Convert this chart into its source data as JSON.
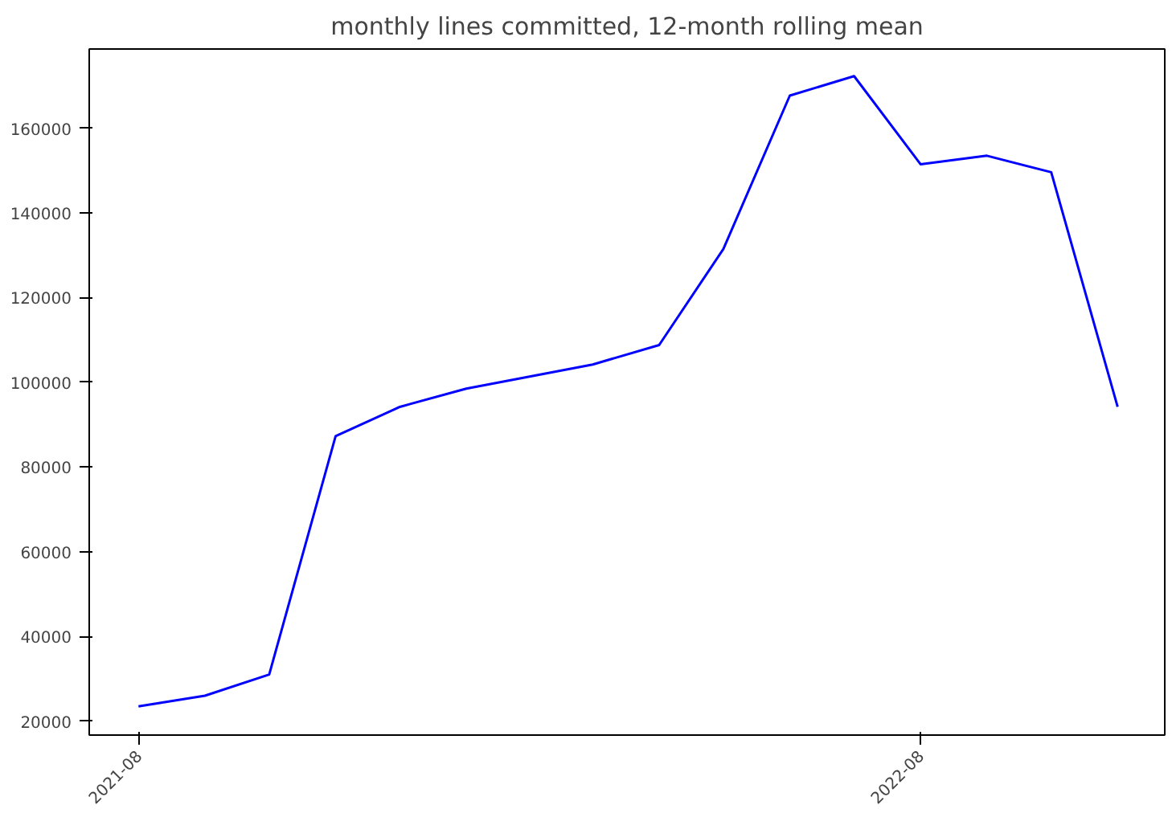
{
  "chart_data": {
    "type": "line",
    "title": "monthly lines committed, 12-month rolling mean",
    "x": [
      "2021-08",
      "2021-09",
      "2021-10",
      "2021-11",
      "2021-12",
      "2022-01",
      "2022-02",
      "2022-03",
      "2022-04",
      "2022-05",
      "2022-06",
      "2022-07",
      "2022-08",
      "2022-09",
      "2022-10",
      "2022-11"
    ],
    "series": [
      {
        "color": "#0000ff",
        "values": [
          23500,
          26000,
          31000,
          87300,
          94200,
          98500,
          101500,
          104200,
          108800,
          131500,
          167700,
          172300,
          151500,
          153500,
          149600,
          94200
        ]
      }
    ],
    "xlim": [
      "2021-07-09",
      "2022-11-23"
    ],
    "xticks": [
      "2021-08",
      "2022-08"
    ],
    "ylim": [
      16700,
      178700
    ],
    "yticks": [
      20000,
      40000,
      60000,
      80000,
      100000,
      120000,
      140000,
      160000
    ],
    "grid": false,
    "marker": "none",
    "line_style": "solid"
  }
}
